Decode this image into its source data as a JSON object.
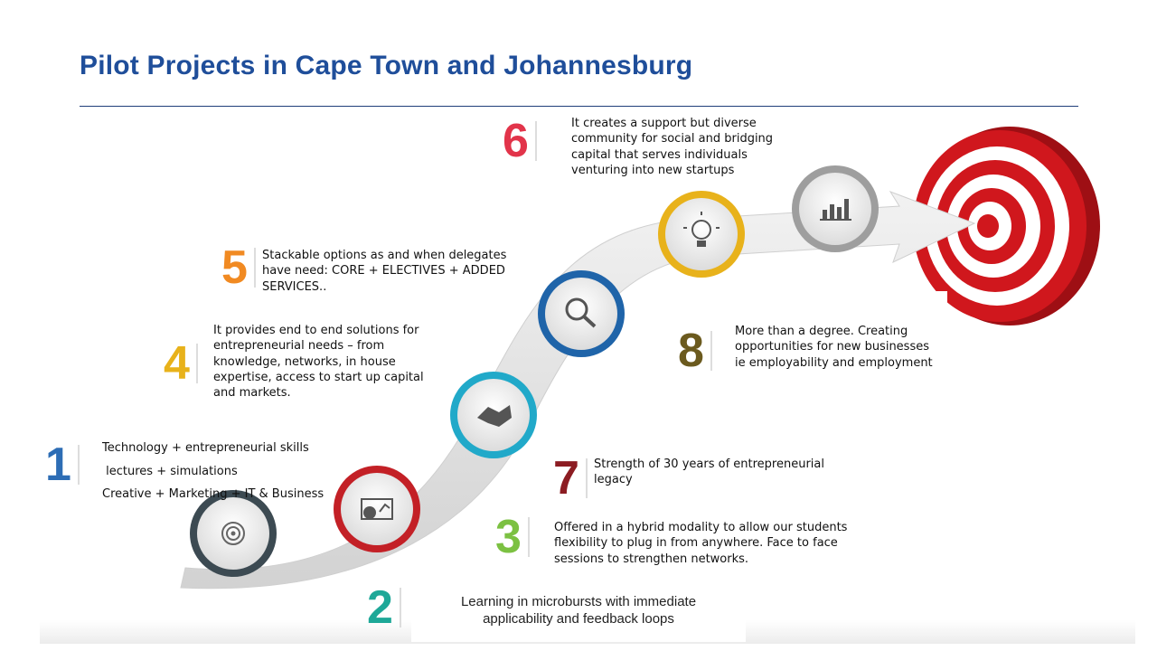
{
  "title": "Pilot Projects in Cape Town and Johannesburg",
  "steps": {
    "s1": {
      "number": "1",
      "color": "#2d6db5",
      "lines": [
        "Technology + entrepreneurial skills",
        " lectures + simulations",
        "Creative + Marketing + IT & Business"
      ]
    },
    "s2": {
      "number": "2",
      "color": "#1ea898",
      "lines": [
        "Learning in microbursts with immediate",
        "applicability and feedback loops"
      ]
    },
    "s3": {
      "number": "3",
      "color": "#7cc142",
      "lines": [
        "Offered in a hybrid modality to allow our students",
        "flexibility to plug in from anywhere.  Face to face",
        "sessions to strengthen networks."
      ]
    },
    "s4": {
      "number": "4",
      "color": "#e8b21b",
      "lines": [
        "It provides end to end solutions for",
        "entrepreneurial needs – from",
        "knowledge, networks, in house",
        "expertise, access to start up capital",
        "and markets."
      ]
    },
    "s5": {
      "number": "5",
      "color": "#f18a22",
      "lines": [
        "Stackable options as and when delegates",
        "have need:  CORE + ELECTIVES + ADDED",
        "SERVICES.."
      ]
    },
    "s6": {
      "number": "6",
      "color": "#e2344a",
      "lines": [
        "It creates a support but diverse",
        "community for  social and bridging",
        "capital that serves individuals",
        "venturing into new startups"
      ]
    },
    "s7": {
      "number": "7",
      "color": "#8c1c22",
      "lines": [
        "Strength of  30 years of entrepreneurial",
        "legacy"
      ]
    },
    "s8": {
      "number": "8",
      "color": "#6b5a1e",
      "lines": [
        "More than a degree. Creating",
        "opportunities for  new businesses",
        "ie employability and employment"
      ]
    }
  },
  "icons": [
    {
      "name": "target-spiral-icon",
      "ring_color": "#3c4a52"
    },
    {
      "name": "presentation-chart-icon",
      "ring_color": "#c32026"
    },
    {
      "name": "handshake-icon",
      "ring_color": "#21a9c9"
    },
    {
      "name": "magnifier-icon",
      "ring_color": "#1f64a9"
    },
    {
      "name": "lightbulb-icon",
      "ring_color": "#e8b21b"
    },
    {
      "name": "bar-chart-icon",
      "ring_color": "#9e9e9e"
    }
  ],
  "target_color": "#d0171d"
}
